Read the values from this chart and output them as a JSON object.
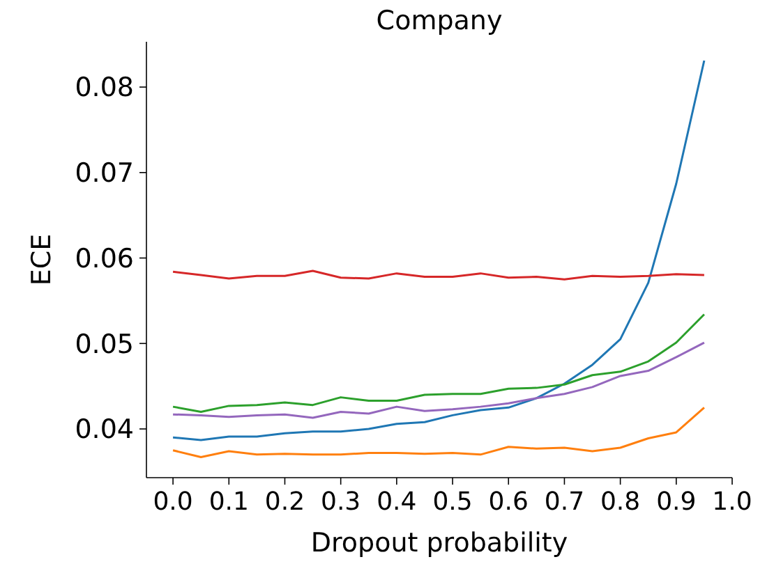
{
  "chart_data": {
    "type": "line",
    "title": "Company",
    "xlabel": "Dropout probability",
    "ylabel": "ECE",
    "x": [
      0,
      0.05,
      0.1,
      0.15,
      0.2,
      0.25,
      0.3,
      0.35,
      0.4,
      0.45,
      0.5,
      0.55,
      0.6,
      0.65,
      0.7,
      0.75,
      0.8,
      0.85,
      0.9,
      0.95
    ],
    "series": [
      {
        "color": "#1f77b4",
        "values": [
          0.039,
          0.0387,
          0.0391,
          0.0391,
          0.0395,
          0.0397,
          0.0397,
          0.04,
          0.0406,
          0.0408,
          0.0416,
          0.0422,
          0.0425,
          0.0436,
          0.0453,
          0.0475,
          0.0505,
          0.0571,
          0.0687,
          0.0831
        ]
      },
      {
        "color": "#ff7f0e",
        "values": [
          0.0375,
          0.0367,
          0.0374,
          0.037,
          0.0371,
          0.037,
          0.037,
          0.0372,
          0.0372,
          0.0371,
          0.0372,
          0.037,
          0.0379,
          0.0377,
          0.0378,
          0.0374,
          0.0378,
          0.0389,
          0.0396,
          0.0425
        ]
      },
      {
        "color": "#2ca02c",
        "values": [
          0.0426,
          0.042,
          0.0427,
          0.0428,
          0.0431,
          0.0428,
          0.0437,
          0.0433,
          0.0433,
          0.044,
          0.0441,
          0.0441,
          0.0447,
          0.0448,
          0.0452,
          0.0463,
          0.0467,
          0.0479,
          0.0501,
          0.0534
        ]
      },
      {
        "color": "#d62728",
        "values": [
          0.0584,
          0.058,
          0.0576,
          0.0579,
          0.0579,
          0.0585,
          0.0577,
          0.0576,
          0.0582,
          0.0578,
          0.0578,
          0.0582,
          0.0577,
          0.0578,
          0.0575,
          0.0579,
          0.0578,
          0.0579,
          0.0581,
          0.058
        ]
      },
      {
        "color": "#9467bd",
        "values": [
          0.0417,
          0.0416,
          0.0414,
          0.0416,
          0.0417,
          0.0413,
          0.042,
          0.0418,
          0.0426,
          0.0421,
          0.0423,
          0.0426,
          0.043,
          0.0436,
          0.0441,
          0.0449,
          0.0462,
          0.0468,
          0.0484,
          0.0501
        ]
      }
    ],
    "xlim": [
      -0.0475,
      1.0
    ],
    "ylim": [
      0.0343,
      0.0853
    ],
    "xticks": [
      {
        "value": 0,
        "label": "0.0"
      },
      0.1,
      0.2,
      0.3,
      0.4,
      0.5,
      0.6,
      0.7,
      0.8,
      0.9,
      {
        "value": 1,
        "label": "1.0"
      }
    ],
    "yticks": [
      0.04,
      0.05,
      0.06,
      0.07,
      0.08
    ],
    "grid": false,
    "marker": "none",
    "line_style": "solid"
  }
}
